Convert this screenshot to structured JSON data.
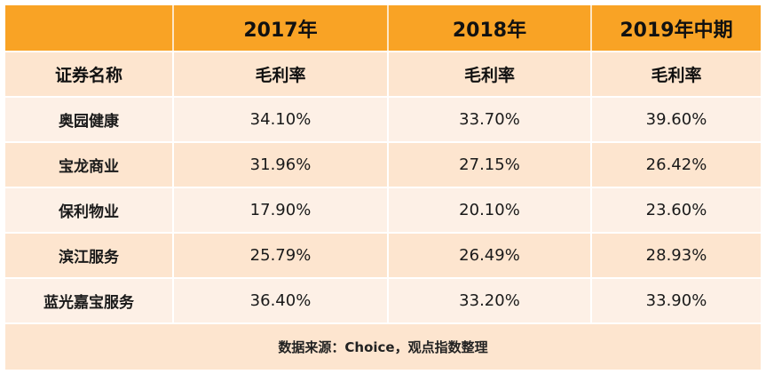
{
  "header": {
    "corner": "",
    "years": [
      "2017年",
      "2018年",
      "2019年中期"
    ]
  },
  "subheader": {
    "name_label": "证券名称",
    "metric_labels": [
      "毛利率",
      "毛利率",
      "毛利率"
    ]
  },
  "rows": [
    {
      "name": "奥园健康",
      "values": [
        "34.10%",
        "33.70%",
        "39.60%"
      ]
    },
    {
      "name": "宝龙商业",
      "values": [
        "31.96%",
        "27.15%",
        "26.42%"
      ]
    },
    {
      "name": "保利物业",
      "values": [
        "17.90%",
        "20.10%",
        "23.60%"
      ]
    },
    {
      "name": "滨江服务",
      "values": [
        "25.79%",
        "26.49%",
        "28.93%"
      ]
    },
    {
      "name": "蓝光嘉宝服务",
      "values": [
        "36.40%",
        "33.20%",
        "33.90%"
      ]
    }
  ],
  "footer": {
    "source": "数据来源：Choice，观点指数整理"
  },
  "colors": {
    "header_orange": "#f9a325",
    "row_light": "#fdf0e6",
    "row_dark": "#fde5cf"
  }
}
